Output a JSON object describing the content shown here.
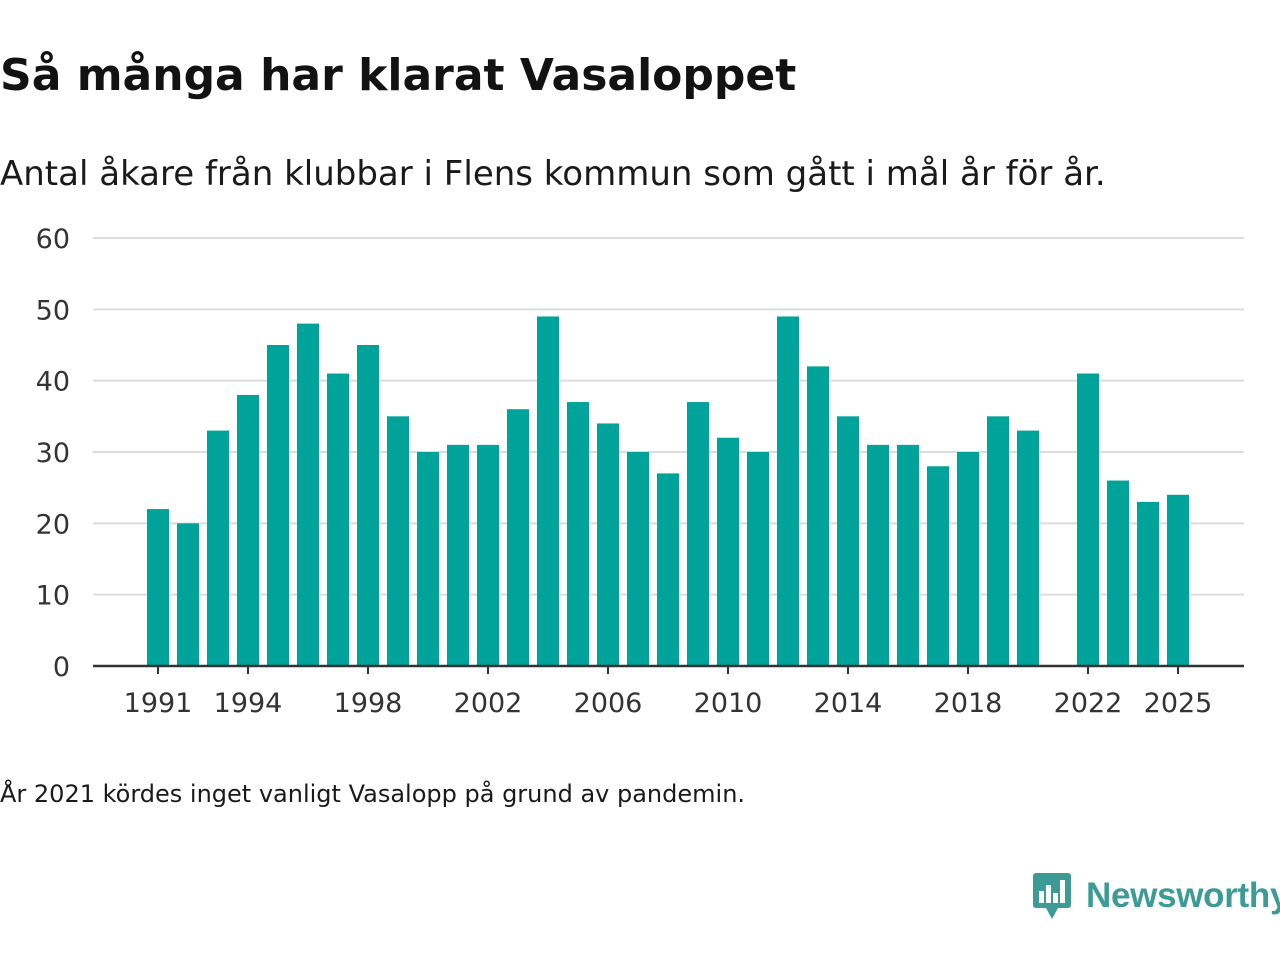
{
  "title": "Så många har klarat Vasaloppet",
  "subtitle": "Antal åkare från klubbar i Flens kommun som gått i mål år för år.",
  "footnote": "År 2021 kördes inget vanligt Vasalopp på grund av pandemin.",
  "brand": {
    "name": "Newsworthy",
    "color": "#3d9b95",
    "icon": "newsworthy-logo-icon"
  },
  "colors": {
    "bar": "#00a39a",
    "grid": "#dddddd",
    "axis": "#333333",
    "tick": "#333333"
  },
  "chart_data": {
    "type": "bar",
    "title": "Så många har klarat Vasaloppet",
    "xlabel": "",
    "ylabel": "",
    "ylim": [
      0,
      60
    ],
    "yticks": [
      0,
      10,
      20,
      30,
      40,
      50,
      60
    ],
    "xtick_labels": [
      1991,
      1994,
      1998,
      2002,
      2006,
      2010,
      2014,
      2018,
      2022,
      2025
    ],
    "x_range": [
      1987.5,
      2027.5
    ],
    "grid": true,
    "legend": "none",
    "categories": [
      1991,
      1992,
      1993,
      1994,
      1995,
      1996,
      1997,
      1998,
      1999,
      2000,
      2001,
      2002,
      2003,
      2004,
      2005,
      2006,
      2007,
      2008,
      2009,
      2010,
      2011,
      2012,
      2013,
      2014,
      2015,
      2016,
      2017,
      2018,
      2019,
      2020,
      2021,
      2022,
      2023,
      2024,
      2025
    ],
    "values": [
      22,
      20,
      33,
      38,
      45,
      48,
      41,
      45,
      35,
      30,
      31,
      31,
      36,
      49,
      37,
      34,
      30,
      27,
      37,
      32,
      30,
      49,
      42,
      35,
      31,
      31,
      28,
      30,
      35,
      33,
      null,
      41,
      26,
      23,
      24
    ]
  }
}
